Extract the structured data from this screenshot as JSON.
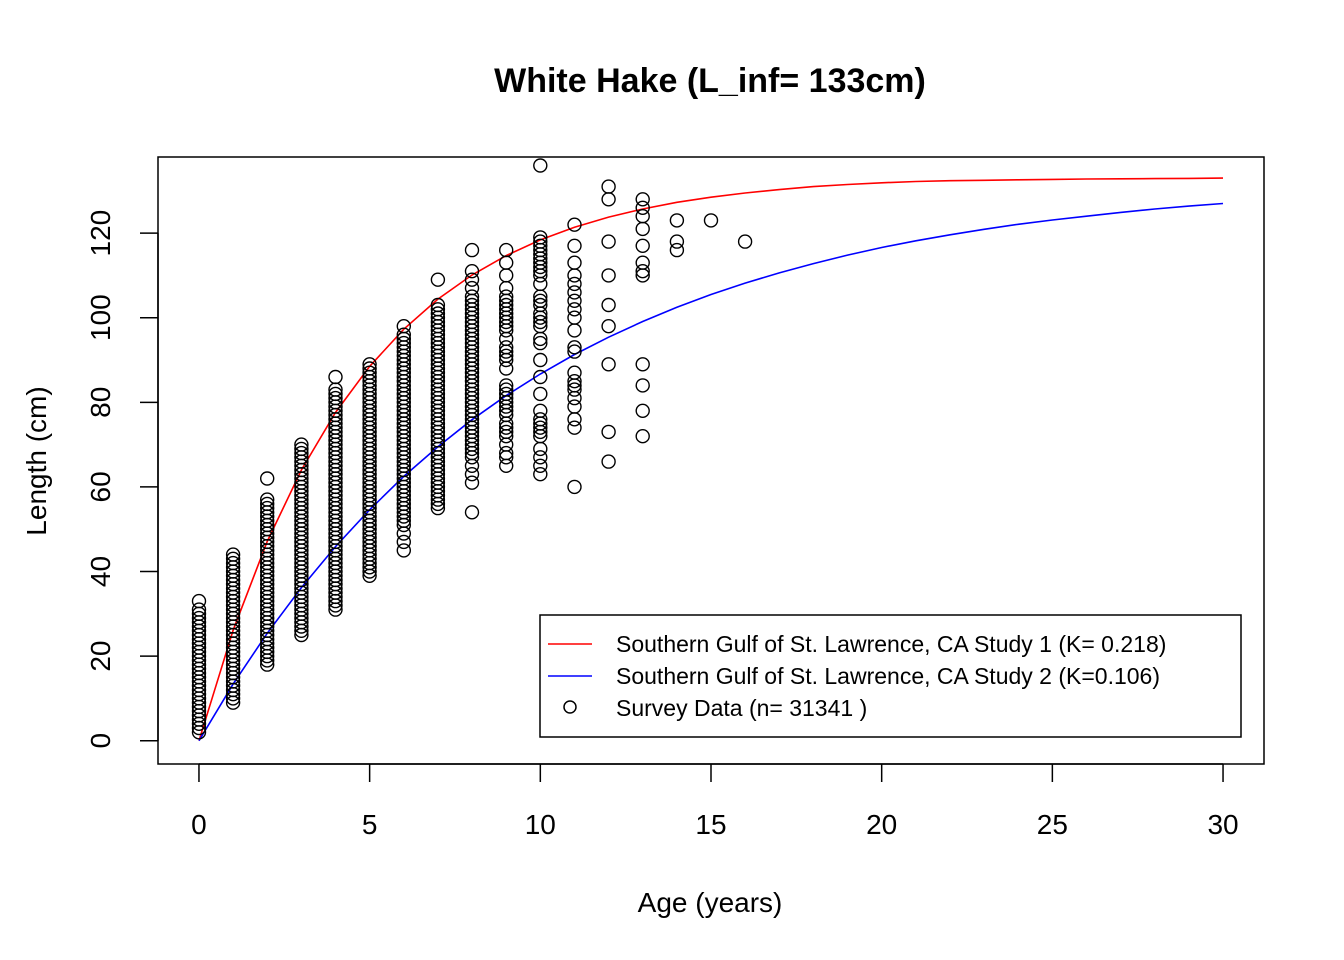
{
  "chart_data": {
    "type": "scatter",
    "title": "White Hake (L_inf= 133cm)",
    "xlabel": "Age (years)",
    "ylabel": "Length (cm)",
    "xlim": [
      -1.2,
      31.2
    ],
    "ylim": [
      -5.5,
      138
    ],
    "x_ticks": [
      0,
      5,
      10,
      15,
      20,
      25,
      30
    ],
    "y_ticks": [
      0,
      20,
      40,
      60,
      80,
      100,
      120
    ],
    "grid": false,
    "legend_position": "bottom-right",
    "l_inf": 133,
    "series": [
      {
        "name": "Southern Gulf of St. Lawrence, CA Study 1 (K= 0.218)",
        "kind": "line",
        "color": "#ff0000",
        "k": 0.218,
        "x": [
          0,
          1,
          2,
          3,
          4,
          5,
          6,
          7,
          8,
          9,
          10,
          11,
          12,
          13,
          14,
          15,
          16,
          17,
          18,
          19,
          20,
          21,
          22,
          23,
          24,
          25,
          26,
          27,
          28,
          29,
          30
        ],
        "y": [
          0,
          26.1,
          47.1,
          64.0,
          77.6,
          88.5,
          97.3,
          104.4,
          110.1,
          114.7,
          118.4,
          121.4,
          123.8,
          125.7,
          127.3,
          128.5,
          129.5,
          130.3,
          131.0,
          131.5,
          131.9,
          132.2,
          132.4,
          132.5,
          132.6,
          132.7,
          132.8,
          132.85,
          132.9,
          132.95,
          133.0
        ]
      },
      {
        "name": "Southern Gulf of St. Lawrence, CA Study 2 (K=0.106)",
        "kind": "line",
        "color": "#0000ff",
        "k": 0.106,
        "x": [
          0,
          1,
          2,
          3,
          4,
          5,
          6,
          7,
          8,
          9,
          10,
          11,
          12,
          13,
          14,
          15,
          16,
          17,
          18,
          19,
          20,
          21,
          22,
          23,
          24,
          25,
          26,
          27,
          28,
          29,
          30
        ],
        "y": [
          0,
          13.4,
          25.4,
          36.2,
          45.9,
          54.6,
          62.5,
          69.5,
          75.9,
          81.6,
          86.7,
          91.3,
          95.4,
          99.1,
          102.5,
          105.5,
          108.2,
          110.6,
          112.8,
          114.8,
          116.6,
          118.2,
          119.6,
          120.9,
          122.1,
          123.1,
          124.0,
          124.9,
          125.7,
          126.4,
          127.0
        ]
      },
      {
        "name": "Survey Data (n= 31341 )",
        "kind": "points",
        "color": "#000000",
        "points_by_age": [
          {
            "x": 0,
            "y": [
              2,
              3,
              4,
              5,
              6,
              7,
              8,
              9,
              10,
              11,
              12,
              13,
              14,
              15,
              16,
              17,
              18,
              19,
              20,
              21,
              22,
              23,
              24,
              25,
              26,
              27,
              28,
              29,
              30,
              31,
              33
            ]
          },
          {
            "x": 1,
            "y": [
              9,
              10,
              11,
              12,
              13,
              14,
              15,
              16,
              17,
              18,
              19,
              20,
              21,
              22,
              23,
              24,
              25,
              26,
              27,
              28,
              29,
              30,
              31,
              32,
              33,
              34,
              35,
              36,
              37,
              38,
              39,
              40,
              41,
              42,
              43,
              44
            ]
          },
          {
            "x": 2,
            "y": [
              18,
              19,
              20,
              21,
              22,
              23,
              24,
              25,
              26,
              27,
              28,
              29,
              30,
              31,
              32,
              33,
              34,
              35,
              36,
              37,
              38,
              39,
              40,
              41,
              42,
              43,
              44,
              45,
              46,
              47,
              48,
              49,
              50,
              51,
              52,
              53,
              54,
              55,
              56,
              57,
              62
            ]
          },
          {
            "x": 3,
            "y": [
              25,
              26,
              27,
              28,
              29,
              30,
              31,
              32,
              33,
              34,
              35,
              36,
              37,
              38,
              39,
              40,
              41,
              42,
              43,
              44,
              45,
              46,
              47,
              48,
              49,
              50,
              51,
              52,
              53,
              54,
              55,
              56,
              57,
              58,
              59,
              60,
              61,
              62,
              63,
              64,
              65,
              66,
              67,
              68,
              69,
              70
            ]
          },
          {
            "x": 4,
            "y": [
              31,
              32,
              33,
              34,
              35,
              36,
              37,
              38,
              39,
              40,
              41,
              42,
              43,
              44,
              45,
              46,
              47,
              48,
              49,
              50,
              51,
              52,
              53,
              54,
              55,
              56,
              57,
              58,
              59,
              60,
              61,
              62,
              63,
              64,
              65,
              66,
              67,
              68,
              69,
              70,
              71,
              72,
              73,
              74,
              75,
              76,
              77,
              78,
              79,
              80,
              81,
              82,
              83,
              86
            ]
          },
          {
            "x": 5,
            "y": [
              39,
              40,
              41,
              42,
              43,
              44,
              45,
              46,
              47,
              48,
              49,
              50,
              51,
              52,
              53,
              54,
              55,
              56,
              57,
              58,
              59,
              60,
              61,
              62,
              63,
              64,
              65,
              66,
              67,
              68,
              69,
              70,
              71,
              72,
              73,
              74,
              75,
              76,
              77,
              78,
              79,
              80,
              81,
              82,
              83,
              84,
              85,
              86,
              87,
              88,
              89
            ]
          },
          {
            "x": 6,
            "y": [
              45,
              47,
              49,
              51,
              52,
              53,
              54,
              55,
              56,
              57,
              58,
              59,
              60,
              61,
              62,
              63,
              64,
              65,
              66,
              67,
              68,
              69,
              70,
              71,
              72,
              73,
              74,
              75,
              76,
              77,
              78,
              79,
              80,
              81,
              82,
              83,
              84,
              85,
              86,
              87,
              88,
              89,
              90,
              91,
              92,
              93,
              94,
              95,
              96,
              98
            ]
          },
          {
            "x": 7,
            "y": [
              55,
              56,
              57,
              58,
              59,
              60,
              61,
              62,
              63,
              64,
              65,
              66,
              67,
              68,
              69,
              70,
              71,
              72,
              73,
              74,
              75,
              76,
              77,
              78,
              79,
              80,
              81,
              82,
              83,
              84,
              85,
              86,
              87,
              88,
              89,
              90,
              91,
              92,
              93,
              94,
              95,
              96,
              97,
              98,
              99,
              100,
              101,
              102,
              103,
              109
            ]
          },
          {
            "x": 8,
            "y": [
              54,
              61,
              63,
              65,
              67,
              68,
              69,
              70,
              71,
              72,
              73,
              74,
              75,
              76,
              77,
              78,
              79,
              80,
              81,
              82,
              83,
              84,
              85,
              86,
              87,
              88,
              89,
              90,
              91,
              92,
              93,
              94,
              95,
              96,
              97,
              98,
              99,
              100,
              101,
              102,
              103,
              104,
              105,
              107,
              109,
              111,
              116
            ]
          },
          {
            "x": 9,
            "y": [
              65,
              67,
              68,
              70,
              72,
              73,
              74,
              75,
              77,
              78,
              79,
              80,
              81,
              82,
              83,
              84,
              88,
              90,
              91,
              92,
              93,
              95,
              97,
              98,
              99,
              100,
              101,
              102,
              103,
              104,
              105,
              107,
              110,
              113,
              116
            ]
          },
          {
            "x": 10,
            "y": [
              63,
              65,
              67,
              69,
              72,
              73,
              74,
              75,
              76,
              78,
              82,
              86,
              90,
              94,
              95,
              98,
              99,
              100,
              101,
              103,
              104,
              105,
              108,
              110,
              111,
              112,
              113,
              114,
              115,
              116,
              117,
              118,
              119,
              136
            ]
          },
          {
            "x": 11,
            "y": [
              60,
              74,
              76,
              79,
              81,
              83,
              84,
              85,
              87,
              92,
              93,
              97,
              100,
              102,
              104,
              106,
              108,
              110,
              113,
              117,
              122
            ]
          },
          {
            "x": 12,
            "y": [
              66,
              73,
              89,
              98,
              103,
              110,
              118,
              128,
              131
            ]
          },
          {
            "x": 13,
            "y": [
              72,
              78,
              84,
              89,
              110,
              111,
              113,
              117,
              121,
              124,
              126,
              128
            ]
          },
          {
            "x": 14,
            "y": [
              116,
              118,
              123
            ]
          },
          {
            "x": 15,
            "y": [
              123
            ]
          },
          {
            "x": 16,
            "y": [
              118
            ]
          }
        ]
      }
    ]
  }
}
